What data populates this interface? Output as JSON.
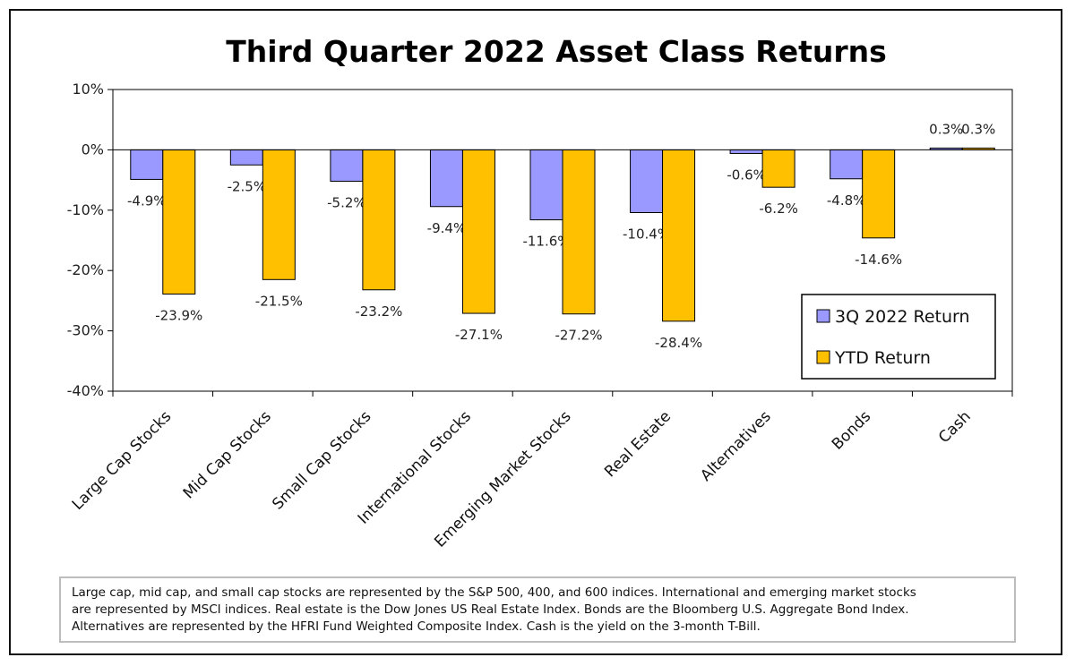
{
  "chart_data": {
    "type": "bar",
    "title": "Third Quarter 2022 Asset Class Returns",
    "categories": [
      "Large Cap Stocks",
      "Mid Cap Stocks",
      "Small Cap Stocks",
      "International Stocks",
      "Emerging Market Stocks",
      "Real Estate",
      "Alternatives",
      "Bonds",
      "Cash"
    ],
    "series": [
      {
        "name": "3Q 2022 Return",
        "color": "#9999ff",
        "values": [
          -4.9,
          -2.5,
          -5.2,
          -9.4,
          -11.6,
          -10.4,
          -0.6,
          -4.8,
          0.3
        ],
        "labels": [
          "-4.9%",
          "-2.5%",
          "-5.2%",
          "-9.4%",
          "-11.6%",
          "-10.4%",
          "-0.6%",
          "-4.8%",
          "0.3%"
        ]
      },
      {
        "name": "YTD Return",
        "color": "#ffc000",
        "values": [
          -23.9,
          -21.5,
          -23.2,
          -27.1,
          -27.2,
          -28.4,
          -6.2,
          -14.6,
          0.3
        ],
        "labels": [
          "-23.9%",
          "-21.5%",
          "-23.2%",
          "-27.1%",
          "-27.2%",
          "-28.4%",
          "-6.2%",
          "-14.6%",
          "0.3%"
        ]
      }
    ],
    "ylim": [
      -40,
      10
    ],
    "yticks": [
      10,
      0,
      -10,
      -20,
      -30,
      -40
    ],
    "ytick_labels": [
      "10%",
      "0%",
      "-10%",
      "-20%",
      "-30%",
      "-40%"
    ],
    "legend_position": "bottom-right",
    "grid": false
  },
  "footnote": {
    "lines": [
      "Large cap, mid cap, and small cap stocks are represented by the S&P 500, 400, and 600 indices.  International and emerging market stocks",
      "are represented by MSCI indices.  Real estate is the Dow Jones US Real Estate Index.  Bonds are the Bloomberg U.S. Aggregate Bond Index.",
      "Alternatives are represented by the HFRI Fund Weighted Composite Index.  Cash is the yield on the 3-month T-Bill."
    ]
  }
}
